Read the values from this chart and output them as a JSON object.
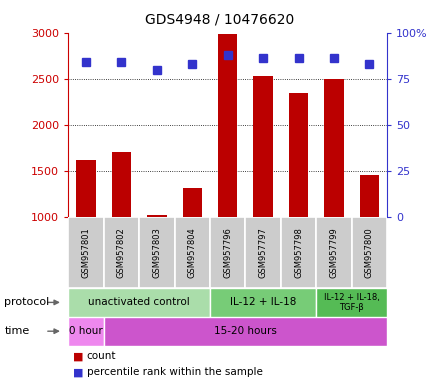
{
  "title": "GDS4948 / 10476620",
  "samples": [
    "GSM957801",
    "GSM957802",
    "GSM957803",
    "GSM957804",
    "GSM957796",
    "GSM957797",
    "GSM957798",
    "GSM957799",
    "GSM957800"
  ],
  "counts": [
    1620,
    1700,
    1020,
    1310,
    2980,
    2530,
    2340,
    2500,
    1450
  ],
  "percentile_ranks": [
    84,
    84,
    80,
    83,
    88,
    86,
    86,
    86,
    83
  ],
  "ylim_left": [
    1000,
    3000
  ],
  "ylim_right": [
    0,
    100
  ],
  "bar_color": "#bb0000",
  "dot_color": "#3333cc",
  "protocol_groups": [
    {
      "label": "unactivated control",
      "start": 0,
      "end": 4,
      "color": "#aaddaa"
    },
    {
      "label": "IL-12 + IL-18",
      "start": 4,
      "end": 7,
      "color": "#77cc77"
    },
    {
      "label": "IL-12 + IL-18,\nTGF-β",
      "start": 7,
      "end": 9,
      "color": "#55bb55"
    }
  ],
  "time_groups": [
    {
      "label": "0 hour",
      "start": 0,
      "end": 1,
      "color": "#ee88ee"
    },
    {
      "label": "15-20 hours",
      "start": 1,
      "end": 9,
      "color": "#cc55cc"
    }
  ],
  "protocol_label": "protocol",
  "time_label": "time",
  "legend_count": "count",
  "legend_percentile": "percentile rank within the sample",
  "dotted_grid_values": [
    1500,
    2000,
    2500
  ],
  "left_axis_ticks": [
    1000,
    1500,
    2000,
    2500,
    3000
  ],
  "right_axis_ticks": [
    0,
    25,
    50,
    75,
    100
  ],
  "title_fontsize": 10,
  "axis_fontsize": 8,
  "sample_fontsize": 6,
  "label_fontsize": 8,
  "legend_fontsize": 7.5,
  "axis_label_color_left": "#cc0000",
  "axis_label_color_right": "#3333cc",
  "sample_box_color": "#cccccc",
  "background_color": "#ffffff"
}
